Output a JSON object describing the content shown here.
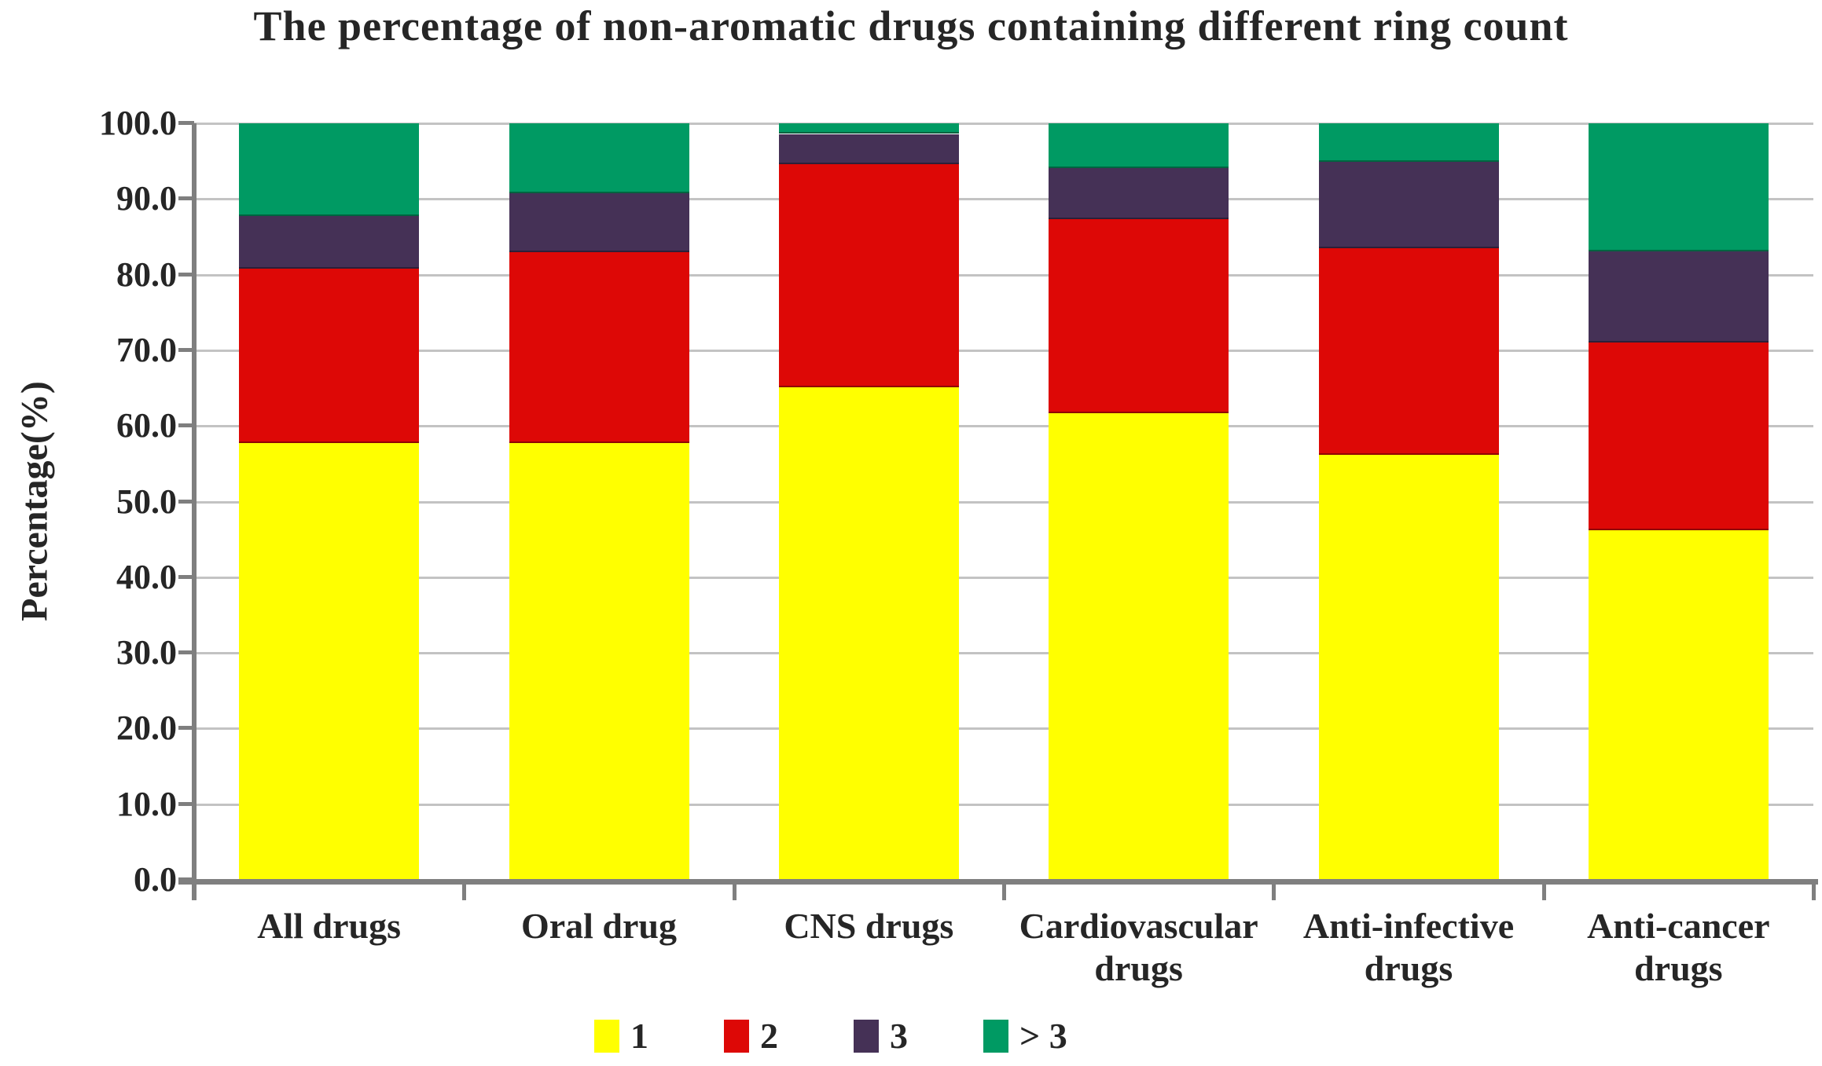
{
  "chart_data": {
    "type": "bar",
    "stacked": true,
    "title": "The percentage of non-aromatic drugs containing different ring count",
    "ylabel": "Percentage(%)",
    "xlabel": "",
    "ylim": [
      0,
      100
    ],
    "y_tick_step": 10,
    "grid": "horizontal",
    "legend_position": "bottom-center",
    "categories": [
      "All drugs",
      "Oral drug",
      "CNS drugs",
      "Cardiovascular drugs",
      "Anti-infective drugs",
      "Anti-cancer drugs"
    ],
    "category_lines": [
      [
        "All drugs"
      ],
      [
        "Oral drug"
      ],
      [
        "CNS drugs"
      ],
      [
        "Cardiovascular",
        "drugs"
      ],
      [
        "Anti-infective",
        "drugs"
      ],
      [
        "Anti-cancer",
        "drugs"
      ]
    ],
    "y_ticks": [
      "100.0",
      "90.0",
      "80.0",
      "70.0",
      "60.0",
      "50.0",
      "40.0",
      "30.0",
      "20.0",
      "10.0",
      "0.0"
    ],
    "series": [
      {
        "name": "1",
        "color": "#FFFF00",
        "values": [
          57.7,
          57.7,
          65.1,
          61.7,
          56.2,
          46.2
        ]
      },
      {
        "name": "2",
        "color": "#DD0806",
        "values": [
          23.1,
          25.3,
          29.5,
          25.6,
          27.3,
          24.8
        ]
      },
      {
        "name": "3",
        "color": "#453156",
        "values": [
          6.9,
          7.8,
          4.0,
          6.8,
          11.4,
          12.1
        ]
      },
      {
        "name": "> 3",
        "color": "#009A63",
        "values": [
          12.3,
          9.2,
          1.4,
          5.9,
          5.1,
          16.9
        ]
      }
    ],
    "colors": {
      "gridline": "#C3C3C3",
      "axis": "#7F7F7F",
      "text": "#262626",
      "background": "#FFFFFF"
    }
  }
}
